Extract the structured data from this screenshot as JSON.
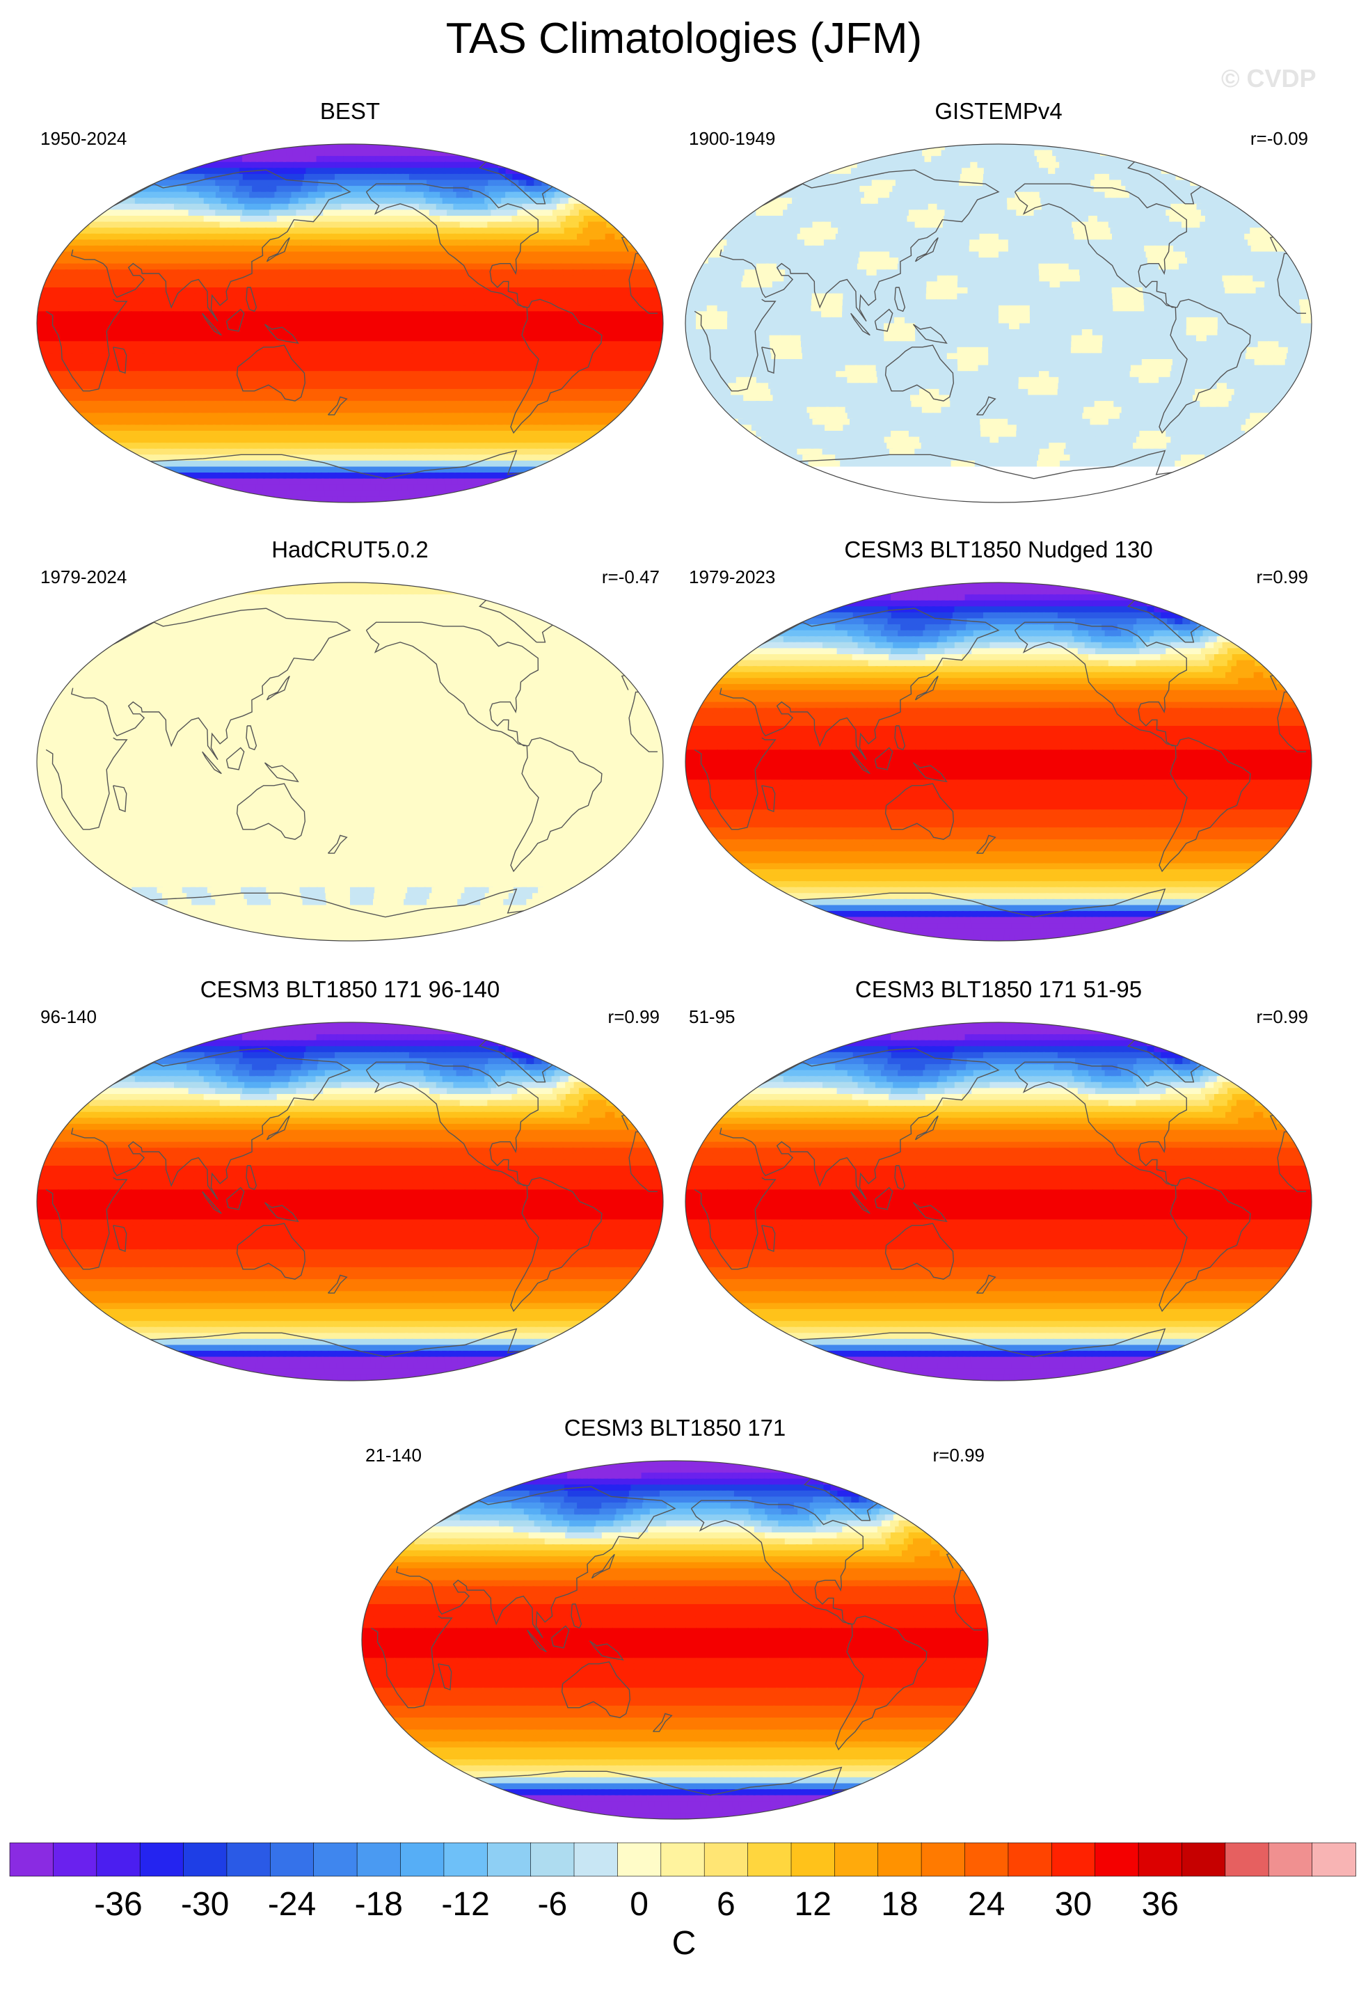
{
  "figure": {
    "title": "TAS Climatologies (JFM)",
    "watermark": "© CVDP"
  },
  "panels": [
    {
      "title": "BEST",
      "period": "1950-2024",
      "corr": "",
      "field": "full"
    },
    {
      "title": "GISTEMPv4",
      "period": "1900-1949",
      "corr": "r=-0.09",
      "field": "gistemp"
    },
    {
      "title": "HadCRUT5.0.2",
      "period": "1979-2024",
      "corr": "r=-0.47",
      "field": "hadcrut"
    },
    {
      "title": "CESM3 BLT1850 Nudged 130",
      "period": "1979-2023",
      "corr": "r=0.99",
      "field": "full"
    },
    {
      "title": "CESM3 BLT1850 171 96-140",
      "period": "96-140",
      "corr": "r=0.99",
      "field": "full"
    },
    {
      "title": "CESM3 BLT1850 171 51-95",
      "period": "51-95",
      "corr": "r=0.99",
      "field": "full"
    },
    {
      "title": "CESM3 BLT1850 171",
      "period": "21-140",
      "corr": "r=0.99",
      "field": "full"
    }
  ],
  "chart_data": {
    "type": "heatmap",
    "projection": "Robinson",
    "variable": "TAS",
    "season": "JFM",
    "colorbar": {
      "unit_label": "C",
      "levels": [
        -39,
        -36,
        -33,
        -30,
        -27,
        -24,
        -21,
        -18,
        -15,
        -12,
        -9,
        -6,
        -3,
        0,
        3,
        6,
        9,
        12,
        15,
        18,
        21,
        24,
        27,
        30,
        33,
        36,
        39
      ],
      "tick_labels": [
        "-36",
        "-30",
        "-24",
        "-18",
        "-12",
        "-6",
        "0",
        "6",
        "12",
        "18",
        "24",
        "30",
        "36"
      ],
      "colors": [
        "#8a2be2",
        "#6a21ee",
        "#4b1ef0",
        "#2424f0",
        "#1e3ee6",
        "#2a5ae6",
        "#3572ea",
        "#3f86ee",
        "#4a9af2",
        "#56aef6",
        "#6ec0f8",
        "#8ecff4",
        "#aedcf0",
        "#c8e6f4",
        "#fffcc8",
        "#fff39e",
        "#ffe574",
        "#ffd63e",
        "#ffc21a",
        "#ffaa0c",
        "#ff9200",
        "#ff7a00",
        "#ff6000",
        "#ff4400",
        "#ff2200",
        "#f40000",
        "#dc0000",
        "#c60000",
        "#e66060",
        "#f09090",
        "#f8b4b4"
      ]
    }
  }
}
